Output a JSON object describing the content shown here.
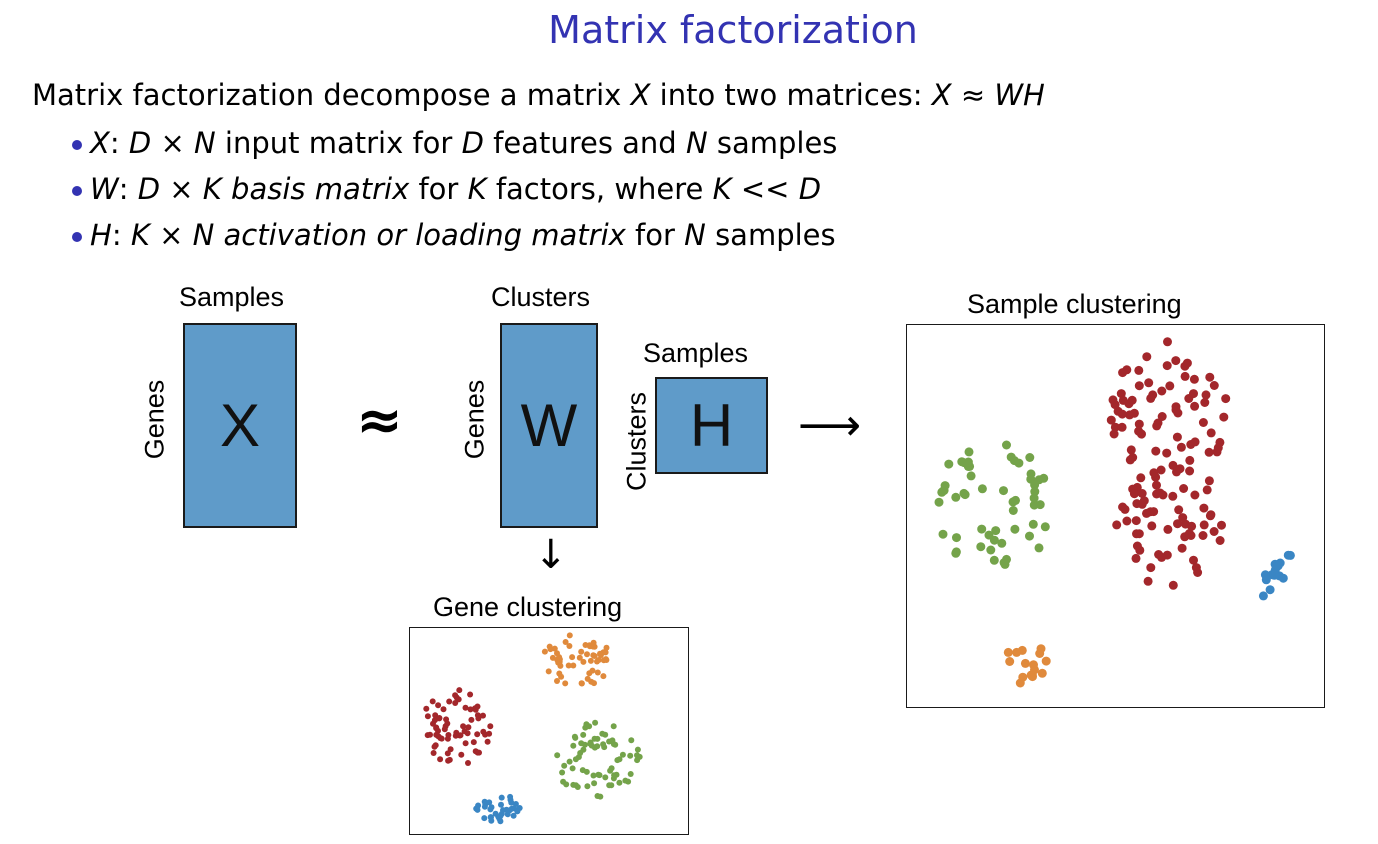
{
  "title": "Matrix factorization",
  "intro": {
    "text": "Matrix factorization decompose a matrix",
    "var": "X",
    "mid": "into two matrices:",
    "eq_lhs": "X",
    "approx": "≈",
    "eq_rhs": "WH"
  },
  "bullets": [
    {
      "var": "X",
      "colon": ":",
      "dim_a": "D",
      "times": "×",
      "dim_b": "N",
      "rest": "input matrix for",
      "v1": "D",
      "mid": "features and",
      "v2": "N",
      "end": "samples"
    },
    {
      "var": "W",
      "colon": ":",
      "dim_a": "D",
      "times": "×",
      "dim_b": "K",
      "em": "basis matrix",
      "rest": "for",
      "v1": "K",
      "mid": "factors, where",
      "cond_a": "K",
      "cond_op": "<<",
      "cond_b": "D"
    },
    {
      "var": "H",
      "colon": ":",
      "dim_a": "K",
      "times": "×",
      "dim_b": "N",
      "em": "activation or loading matrix",
      "rest": "for",
      "v1": "N",
      "end": "samples"
    }
  ],
  "diagram": {
    "x_matrix": {
      "letter": "X",
      "top_label": "Samples",
      "side_label": "Genes"
    },
    "approx_symbol": "≈",
    "w_matrix": {
      "letter": "W",
      "top_label": "Clusters",
      "side_label": "Genes"
    },
    "h_matrix": {
      "letter": "H",
      "top_label": "Samples",
      "side_label": "Clusters"
    },
    "right_arrow": "⟶",
    "down_arrow": "↓",
    "gene_clustering_title": "Gene clustering",
    "sample_clustering_title": "Sample clustering",
    "colors": {
      "blue": "#5f9bc9",
      "red": "#a3272b",
      "green": "#74a34a",
      "orange": "#e08a3c",
      "dot_blue": "#3a86c4",
      "title_blue": "#3333b2"
    }
  }
}
